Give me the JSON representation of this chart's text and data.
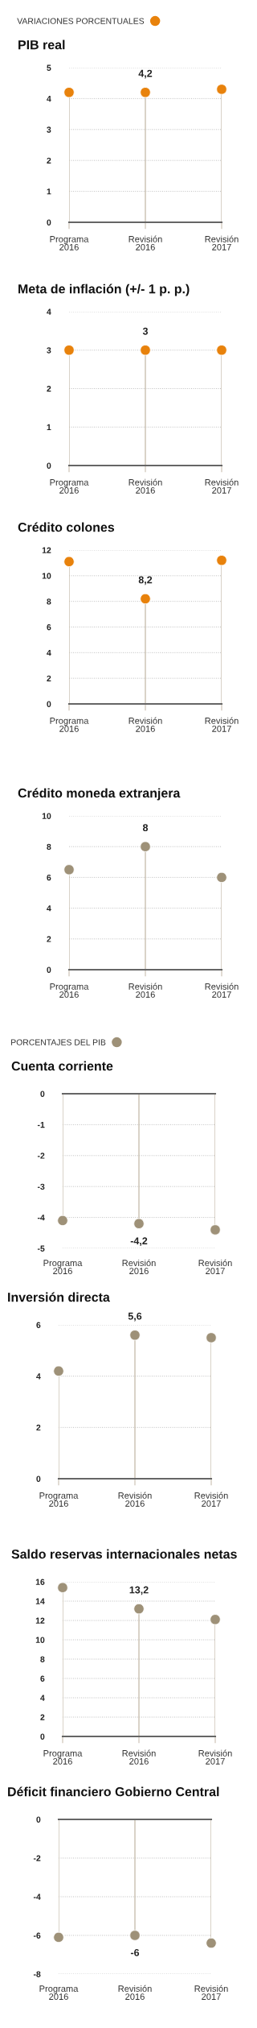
{
  "chart_data": [
    {
      "type": "lollipop",
      "title": "PIB real",
      "categories": [
        "Programa\n2016",
        "Revisión\n2016",
        "Revisión\n2017"
      ],
      "series": [
        {
          "name": "VARIACIONES PORCENTUALES",
          "color": "#e8820c",
          "values": [
            4.2,
            4.2,
            4.3
          ],
          "value_labels": [
            null,
            "4,2",
            null
          ]
        }
      ],
      "ylim": [
        0,
        5
      ],
      "yticks": [
        0,
        1,
        2,
        3,
        4,
        5
      ],
      "grid": "y",
      "legend": "top left",
      "marker": "circle"
    },
    {
      "type": "lollipop",
      "title": "Meta de inflación (+/- 1 p. p.)",
      "categories": [
        "Programa\n2016",
        "Revisión\n2016",
        "Revisión\n2017"
      ],
      "series": [
        {
          "color": "#e8820c",
          "values": [
            3,
            3,
            3
          ],
          "value_labels": [
            null,
            "3",
            null
          ]
        }
      ],
      "ylim": [
        0,
        4
      ],
      "yticks": [
        0,
        1,
        2,
        3,
        4
      ],
      "grid": "y",
      "marker": "circle"
    },
    {
      "type": "lollipop",
      "title": "Crédito colones",
      "categories": [
        "Programa\n2016",
        "Revisión\n2016",
        "Revisión\n2017"
      ],
      "series": [
        {
          "color": "#e8820c",
          "values": [
            11.1,
            8.2,
            11.2
          ],
          "value_labels": [
            null,
            "8,2",
            null
          ]
        }
      ],
      "ylim": [
        0,
        12
      ],
      "yticks": [
        0,
        2,
        4,
        6,
        8,
        10,
        12
      ],
      "grid": "y",
      "marker": "circle"
    },
    {
      "type": "lollipop",
      "title": "Crédito moneda extranjera",
      "categories": [
        "Programa\n2016",
        "Revisión\n2016",
        "Revisión\n2017"
      ],
      "series": [
        {
          "color": "#9e9178",
          "values": [
            6.5,
            8,
            6.0
          ],
          "value_labels": [
            null,
            "8",
            null
          ]
        }
      ],
      "ylim": [
        0,
        10
      ],
      "yticks": [
        0,
        2,
        4,
        6,
        8,
        10
      ],
      "grid": "y",
      "marker": "circle"
    },
    {
      "type": "lollipop",
      "title": "Cuenta corriente",
      "categories": [
        "Programa\n2016",
        "Revisión\n2016",
        "Revisión\n2017"
      ],
      "series": [
        {
          "name": "PORCENTAJES DEL PIB",
          "color": "#9e9178",
          "values": [
            -4.1,
            -4.2,
            -4.4
          ],
          "value_labels": [
            null,
            "-4,2",
            null
          ]
        }
      ],
      "ylim": [
        -5,
        0
      ],
      "yticks": [
        {
          "value": -5,
          "label": "-5"
        },
        {
          "value": -4,
          "label": "-4"
        },
        {
          "value": -3,
          "label": "-3"
        },
        {
          "value": -2,
          "label": "-2"
        },
        {
          "value": -1,
          "label": "-1"
        },
        0
      ],
      "grid": "y",
      "legend": "top left",
      "marker": "circle"
    },
    {
      "type": "lollipop",
      "title": "Inversión directa",
      "categories": [
        "Programa\n2016",
        "Revisión\n2016",
        "Revisión\n2017"
      ],
      "series": [
        {
          "color": "#9e9178",
          "values": [
            4.2,
            5.6,
            5.5
          ],
          "value_labels": [
            null,
            "5,6",
            null
          ]
        }
      ],
      "ylim": [
        0,
        6
      ],
      "yticks": [
        0,
        2,
        4,
        6
      ],
      "grid": "y",
      "marker": "circle"
    },
    {
      "type": "lollipop",
      "title": "Saldo reservas internacionales netas",
      "categories": [
        "Programa\n2016",
        "Revisión\n2016",
        "Revisión\n2017"
      ],
      "series": [
        {
          "color": "#9e9178",
          "values": [
            15.4,
            13.2,
            12.1
          ],
          "value_labels": [
            null,
            "13,2",
            null
          ]
        }
      ],
      "ylim": [
        0,
        16
      ],
      "yticks": [
        0,
        2,
        4,
        6,
        8,
        10,
        12,
        14,
        16
      ],
      "grid": "y",
      "marker": "circle"
    },
    {
      "type": "lollipop",
      "title": "Déficit financiero Gobierno Central",
      "categories": [
        "Programa\n2016",
        "Revisión\n2016",
        "Revisión\n2017"
      ],
      "series": [
        {
          "color": "#9e9178",
          "values": [
            -6.1,
            -6,
            -6.4
          ],
          "value_labels": [
            null,
            "-6",
            null
          ]
        }
      ],
      "ylim": [
        -8,
        0
      ],
      "yticks": [
        {
          "value": -8,
          "label": "-8"
        },
        {
          "value": -6,
          "label": "-6"
        },
        {
          "value": -4,
          "label": "-4"
        },
        {
          "value": -2,
          "label": "-2"
        },
        0
      ],
      "grid": "y",
      "marker": "circle"
    }
  ]
}
